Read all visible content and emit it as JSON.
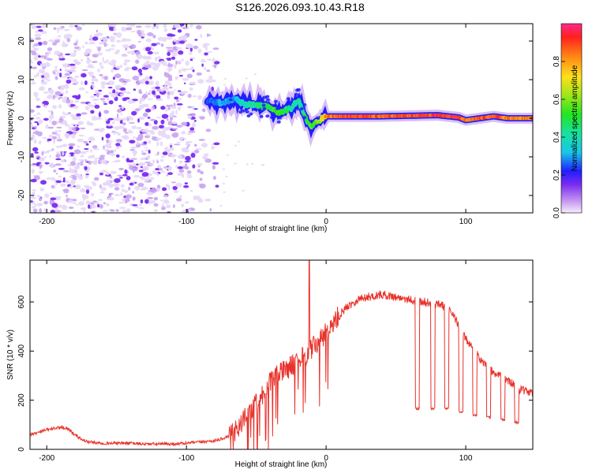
{
  "title": "S126.2026.093.10.43.R18",
  "colors": {
    "snr_line": "#e8322c",
    "axis": "#000000",
    "scatter": "#7a2cf0"
  },
  "chart_data": [
    {
      "type": "heatmap",
      "name": "spectrogram",
      "xlabel": "Height of straight line (km)",
      "ylabel": "Frequency (Hz)",
      "xlim": [
        -212,
        148
      ],
      "ylim": [
        -24.5,
        24.5
      ],
      "xticks": [
        -200,
        -100,
        0,
        100
      ],
      "yticks": [
        -20,
        -10,
        0,
        10,
        20
      ],
      "noise_region_x": [
        -212,
        -78
      ],
      "ridge": {
        "x": [
          -85,
          -75,
          -65,
          -58,
          -50,
          -45,
          -40,
          -35,
          -30,
          -25,
          -20,
          -17,
          -13,
          -10,
          -5,
          0,
          10,
          40,
          80,
          95,
          100,
          120,
          130,
          148
        ],
        "freq": [
          4.5,
          4,
          5,
          3.5,
          3.5,
          3,
          3,
          1.5,
          2,
          2.5,
          5,
          2,
          -1.5,
          -2,
          -0.5,
          0.5,
          0.5,
          0.5,
          0.8,
          0.2,
          -0.5,
          0.5,
          0,
          0
        ],
        "amp": [
          0.25,
          0.3,
          0.3,
          0.4,
          0.45,
          0.5,
          0.5,
          0.55,
          0.5,
          0.45,
          0.4,
          0.45,
          0.5,
          0.55,
          0.6,
          0.85,
          0.9,
          0.9,
          0.92,
          0.9,
          0.85,
          0.9,
          0.85,
          0.85
        ]
      },
      "colorbar": {
        "label": "Normalized spectral amplitude",
        "range": [
          0,
          1
        ],
        "ticks": [
          "0.0",
          "0.2",
          "0.4",
          "0.6",
          "0.8"
        ]
      }
    },
    {
      "type": "line",
      "name": "snr",
      "xlabel": "Height of straight line (km)",
      "ylabel": "SNR (10 * v/v)",
      "xlim": [
        -212,
        148
      ],
      "ylim": [
        0,
        770
      ],
      "xticks": [
        -200,
        -100,
        0,
        100
      ],
      "yticks": [
        0,
        200,
        400,
        600
      ],
      "series": [
        {
          "name": "SNR",
          "x": [
            -212,
            -205,
            -200,
            -195,
            -190,
            -185,
            -180,
            -175,
            -170,
            -160,
            -150,
            -140,
            -130,
            -120,
            -110,
            -100,
            -90,
            -80,
            -70,
            -65,
            -60,
            -55,
            -50,
            -45,
            -40,
            -35,
            -30,
            -25,
            -20,
            -15,
            -10,
            -5,
            0,
            5,
            10,
            15,
            20,
            25,
            30,
            35,
            40,
            45,
            50,
            55,
            60,
            65,
            70,
            75,
            80,
            85,
            90,
            95,
            100,
            105,
            110,
            115,
            120,
            125,
            130,
            135,
            140,
            148
          ],
          "y": [
            60,
            70,
            80,
            85,
            90,
            85,
            60,
            40,
            30,
            25,
            25,
            25,
            22,
            22,
            22,
            25,
            30,
            35,
            50,
            80,
            110,
            150,
            190,
            230,
            270,
            300,
            320,
            340,
            360,
            380,
            410,
            440,
            470,
            510,
            550,
            580,
            600,
            615,
            620,
            625,
            630,
            625,
            620,
            615,
            610,
            605,
            600,
            595,
            590,
            580,
            560,
            500,
            450,
            410,
            370,
            340,
            310,
            300,
            280,
            260,
            240,
            230
          ]
        }
      ],
      "spike": {
        "x": -12,
        "y": 770
      },
      "dropouts": [
        {
          "x": 64,
          "width": 3,
          "y": 165
        },
        {
          "x": 75,
          "width": 3,
          "y": 165
        },
        {
          "x": 85,
          "width": 3,
          "y": 165
        },
        {
          "x": 95,
          "width": 3,
          "y": 150
        },
        {
          "x": 105,
          "width": 3,
          "y": 140
        },
        {
          "x": 115,
          "width": 3,
          "y": 130
        },
        {
          "x": 125,
          "width": 3,
          "y": 120
        },
        {
          "x": 135,
          "width": 3,
          "y": 110
        }
      ]
    }
  ]
}
